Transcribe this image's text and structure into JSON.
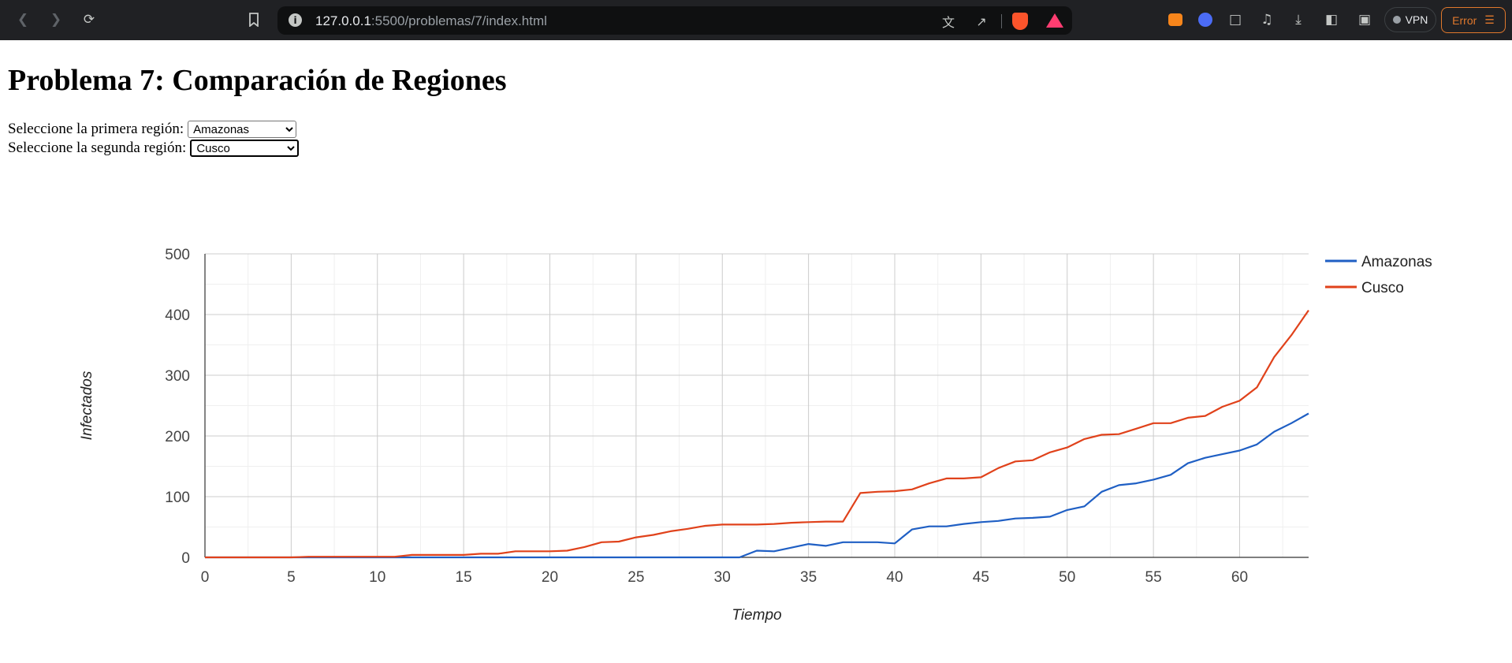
{
  "browser": {
    "url_host": "127.0.0.1",
    "url_path": ":5500/problemas/7/index.html",
    "vpn_label": "VPN",
    "error_label": "Error",
    "icons": [
      "back-icon",
      "forward-icon",
      "reload-icon",
      "bookmark-icon",
      "site-info-icon",
      "translate-icon",
      "share-icon",
      "brave-shields-icon",
      "brave-rewards-icon",
      "metamask-icon",
      "extension-icon",
      "puzzle-icon",
      "music-icon",
      "download-icon",
      "sidebar-icon",
      "wallet-icon",
      "menu-icon"
    ]
  },
  "page": {
    "title": "Problema 7: Comparación de Regiones",
    "select1": {
      "label": "Seleccione la primera región:",
      "value": "Amazonas"
    },
    "select2": {
      "label": "Seleccione la segunda región:",
      "value": "Cusco"
    }
  },
  "chart_data": {
    "type": "line",
    "xlabel": "Tiempo",
    "ylabel": "Infectados",
    "xlim": [
      0,
      64
    ],
    "ylim": [
      0,
      500
    ],
    "x_ticks": [
      0,
      5,
      10,
      15,
      20,
      25,
      30,
      35,
      40,
      45,
      50,
      55,
      60
    ],
    "y_ticks": [
      0,
      100,
      200,
      300,
      400,
      500
    ],
    "grid": true,
    "legend_position": "right",
    "x": [
      0,
      1,
      2,
      3,
      4,
      5,
      6,
      7,
      8,
      9,
      10,
      11,
      12,
      13,
      14,
      15,
      16,
      17,
      18,
      19,
      20,
      21,
      22,
      23,
      24,
      25,
      26,
      27,
      28,
      29,
      30,
      31,
      32,
      33,
      34,
      35,
      36,
      37,
      38,
      39,
      40,
      41,
      42,
      43,
      44,
      45,
      46,
      47,
      48,
      49,
      50,
      51,
      52,
      53,
      54,
      55,
      56,
      57,
      58,
      59,
      60,
      61,
      62,
      63,
      64
    ],
    "series": [
      {
        "name": "Amazonas",
        "color": "#1f5fc4",
        "values": [
          0,
          0,
          0,
          0,
          0,
          0,
          0,
          0,
          0,
          0,
          0,
          0,
          0,
          0,
          0,
          0,
          0,
          0,
          0,
          0,
          0,
          0,
          0,
          0,
          0,
          0,
          0,
          0,
          0,
          0,
          0,
          0,
          11,
          10,
          16,
          22,
          19,
          25,
          25,
          25,
          23,
          46,
          51,
          51,
          55,
          58,
          60,
          64,
          65,
          67,
          78,
          84,
          108,
          119,
          122,
          128,
          136,
          155,
          164,
          170,
          176,
          186,
          207,
          221,
          237
        ]
      },
      {
        "name": "Cusco",
        "color": "#e0421b",
        "values": [
          0,
          0,
          0,
          0,
          0,
          0,
          1,
          1,
          1,
          1,
          1,
          1,
          4,
          4,
          4,
          4,
          6,
          6,
          10,
          10,
          10,
          11,
          17,
          25,
          26,
          33,
          37,
          43,
          47,
          52,
          54,
          54,
          54,
          55,
          57,
          58,
          59,
          59,
          106,
          108,
          109,
          112,
          122,
          130,
          130,
          132,
          147,
          158,
          160,
          173,
          181,
          195,
          202,
          203,
          212,
          221,
          221,
          230,
          233,
          248,
          258,
          280,
          330,
          366,
          407
        ]
      }
    ]
  }
}
